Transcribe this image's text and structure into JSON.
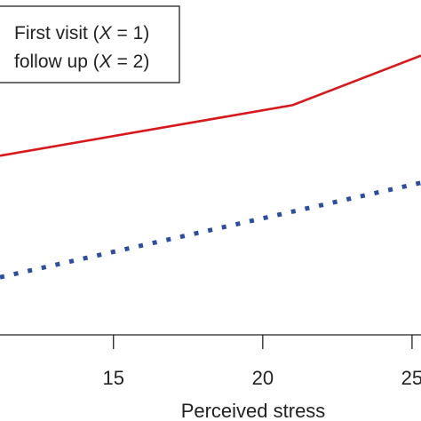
{
  "chart_data": {
    "type": "line",
    "xlabel": "Perceived stress",
    "ylabel": "",
    "title": "",
    "xlim": [
      11.2,
      25.3
    ],
    "x_ticks": [
      {
        "value": 15,
        "label": "15"
      },
      {
        "value": 20,
        "label": "20"
      },
      {
        "value": 25,
        "label": "25"
      }
    ],
    "legend": {
      "placement": "top-left",
      "entries": [
        {
          "prefix": "First visit (",
          "var": "X",
          "suffix": " = 1)"
        },
        {
          "prefix": "follow up (",
          "var": "X",
          "suffix": " = 2)"
        }
      ]
    },
    "series": [
      {
        "style": "solid",
        "color": "#d7191c",
        "points": [
          [
            11.2,
            0.535
          ],
          [
            21.0,
            0.686
          ],
          [
            25.3,
            0.834
          ]
        ]
      },
      {
        "style": "dotted",
        "color": "#2c4ea0",
        "points": [
          [
            11.2,
            0.172
          ],
          [
            25.3,
            0.454
          ]
        ]
      }
    ]
  }
}
